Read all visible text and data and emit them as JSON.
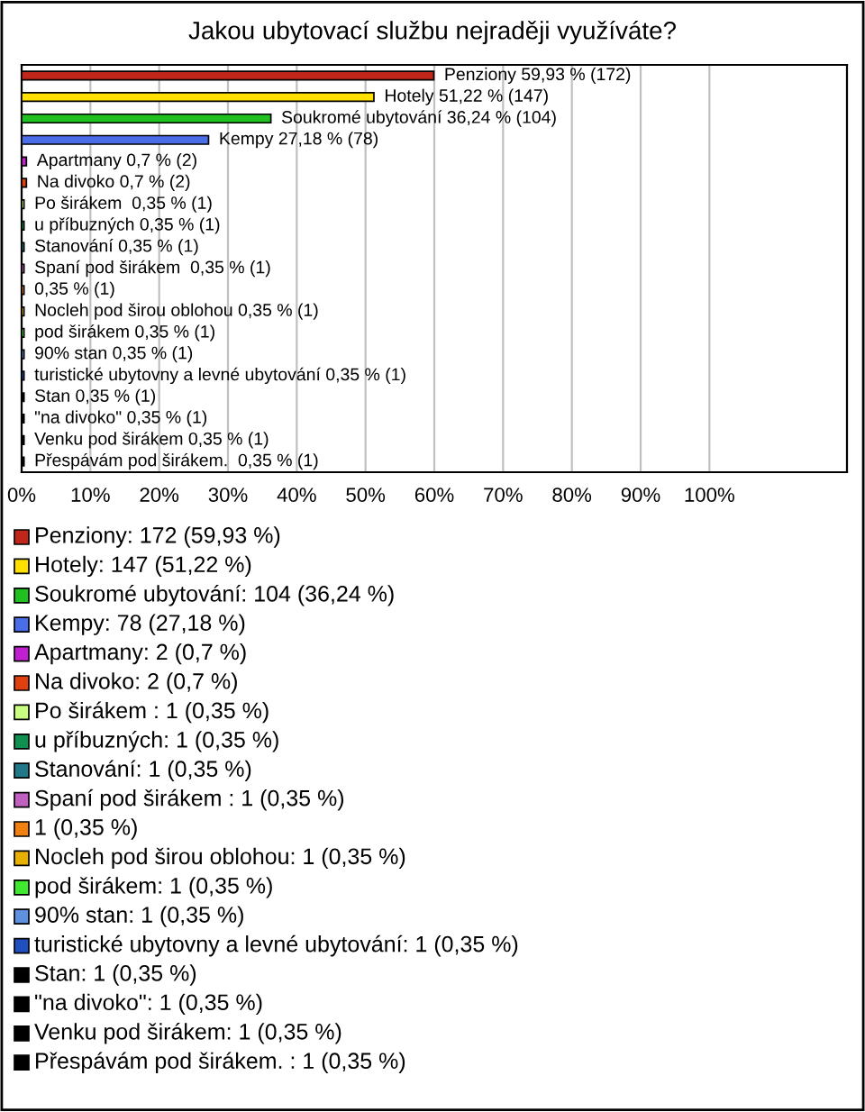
{
  "chart_data": {
    "type": "bar",
    "orientation": "horizontal",
    "title": "Jakou ubytovací službu nejraději využíváte?",
    "categories": [
      "Penziony",
      "Hotely",
      "Soukromé ubytování",
      "Kempy",
      "Apartmany",
      "Na divoko",
      "Po širákem ",
      "u příbuzných",
      "Stanování",
      "Spaní pod širákem ",
      null,
      "Nocleh pod širou oblohou",
      "pod širákem",
      "90% stan",
      "turistické ubytovny a levné ubytování",
      "Stan",
      "\"na divoko\"",
      "Venku pod širákem",
      "Přespávám pod širákem. "
    ],
    "values": [
      59.93,
      51.22,
      36.24,
      27.18,
      0.7,
      0.7,
      0.35,
      0.35,
      0.35,
      0.35,
      0.35,
      0.35,
      0.35,
      0.35,
      0.35,
      0.35,
      0.35,
      0.35,
      0.35
    ],
    "value_labels": [
      "59,93 % (172)",
      "51,22 % (147)",
      "36,24 % (104)",
      "27,18 % (78)",
      "0,7 % (2)",
      "0,7 % (2)",
      "0,35 % (1)",
      "0,35 % (1)",
      "0,35 % (1)",
      "0,35 % (1)",
      "0,35 % (1)",
      "0,35 % (1)",
      "0,35 % (1)",
      "0,35 % (1)",
      "0,35 % (1)",
      "0,35 % (1)",
      "0,35 % (1)",
      "0,35 % (1)",
      "0,35 % (1)"
    ],
    "colors": [
      "#c0261a",
      "#ffe000",
      "#20c020",
      "#4a6ee8",
      "#c020d0",
      "#e04010",
      "#c8ff80",
      "#109050",
      "#207888",
      "#c060c0",
      "#f08010",
      "#e8b000",
      "#40e830",
      "#6090e0",
      "#2050c0",
      "#000000",
      "#000000",
      "#000000",
      "#000000"
    ],
    "xlim": [
      0,
      120
    ],
    "xticks": [
      {
        "value": 0,
        "label": "0%"
      },
      {
        "value": 10,
        "label": "10%"
      },
      {
        "value": 20,
        "label": "20%"
      },
      {
        "value": 30,
        "label": "30%"
      },
      {
        "value": 40,
        "label": "40%"
      },
      {
        "value": 50,
        "label": "50%"
      },
      {
        "value": 60,
        "label": "60%"
      },
      {
        "value": 70,
        "label": "70%"
      },
      {
        "value": 80,
        "label": "80%"
      },
      {
        "value": 90,
        "label": "90%"
      },
      {
        "value": 100,
        "label": "100%"
      }
    ],
    "grid": "x",
    "annotations": [
      "Penziony: 172 (59,93 %)",
      "Hotely: 147 (51,22 %)",
      "Soukromé ubytování: 104 (36,24 %)",
      "Kempy: 78 (27,18 %)",
      "Apartmany: 2 (0,7 %)",
      "Na divoko: 2 (0,7 %)",
      "Po širákem : 1 (0,35 %)",
      "u příbuzných: 1 (0,35 %)",
      "Stanování: 1 (0,35 %)",
      "Spaní pod širákem : 1 (0,35 %)",
      "1 (0,35 %)",
      "Nocleh pod širou oblohou: 1 (0,35 %)",
      "pod širákem: 1 (0,35 %)",
      "90% stan: 1 (0,35 %)",
      "turistické ubytovny a levné ubytování: 1 (0,35 %)",
      "Stan: 1 (0,35 %)",
      "\"na divoko\": 1 (0,35 %)",
      "Venku pod širákem: 1 (0,35 %)",
      "Přespávám pod širákem. : 1 (0,35 %)"
    ]
  }
}
